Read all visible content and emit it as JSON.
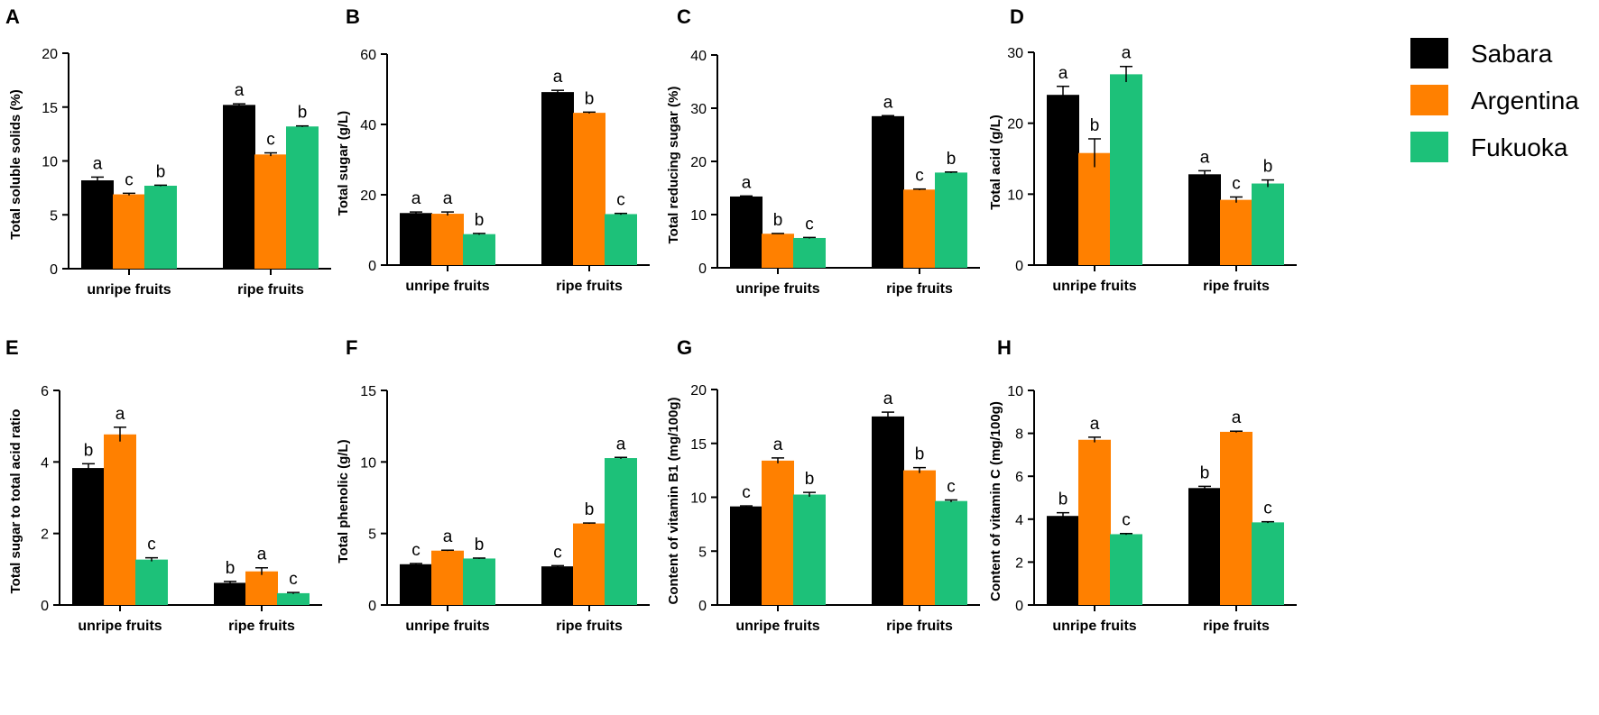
{
  "colors": {
    "Sabara": "#000000",
    "Argentina": "#ff8000",
    "Fukuoka": "#1dc179"
  },
  "legend": [
    "Sabara",
    "Argentina",
    "Fukuoka"
  ],
  "chart_data": [
    {
      "panel": "A",
      "type": "bar",
      "ylabel": "Total soluble solids (%)",
      "ylim": [
        0,
        20
      ],
      "yticks": [
        0,
        5,
        10,
        15,
        20
      ],
      "categories": [
        "unripe fruits",
        "ripe fruits"
      ],
      "series": [
        {
          "name": "Sabara",
          "values": [
            8.2,
            15.2
          ],
          "errors": [
            0.3,
            0.1
          ],
          "letters": [
            "a",
            "a"
          ]
        },
        {
          "name": "Argentina",
          "values": [
            6.9,
            10.6
          ],
          "errors": [
            0.1,
            0.15
          ],
          "letters": [
            "c",
            "c"
          ]
        },
        {
          "name": "Fukuoka",
          "values": [
            7.7,
            13.2
          ],
          "errors": [
            0.05,
            0.05
          ],
          "letters": [
            "b",
            "b"
          ]
        }
      ]
    },
    {
      "panel": "B",
      "type": "bar",
      "ylabel": "Total sugar (g/L)",
      "ylim": [
        0,
        60
      ],
      "yticks": [
        0,
        20,
        40,
        60
      ],
      "categories": [
        "unripe fruits",
        "ripe fruits"
      ],
      "series": [
        {
          "name": "Sabara",
          "values": [
            14.8,
            49.2
          ],
          "errors": [
            0.3,
            0.5
          ],
          "letters": [
            "a",
            "a"
          ]
        },
        {
          "name": "Argentina",
          "values": [
            14.6,
            43.3
          ],
          "errors": [
            0.5,
            0.2
          ],
          "letters": [
            "a",
            "b"
          ]
        },
        {
          "name": "Fukuoka",
          "values": [
            8.8,
            14.5
          ],
          "errors": [
            0.2,
            0.2
          ],
          "letters": [
            "b",
            "c"
          ]
        }
      ]
    },
    {
      "panel": "C",
      "type": "bar",
      "ylabel": "Total  reducing sugar (%)",
      "ylim": [
        0,
        40
      ],
      "yticks": [
        0,
        10,
        20,
        30,
        40
      ],
      "categories": [
        "unripe fruits",
        "ripe fruits"
      ],
      "series": [
        {
          "name": "Sabara",
          "values": [
            13.4,
            28.5
          ],
          "errors": [
            0.1,
            0.1
          ],
          "letters": [
            "a",
            "a"
          ]
        },
        {
          "name": "Argentina",
          "values": [
            6.4,
            14.7
          ],
          "errors": [
            0.05,
            0.1
          ],
          "letters": [
            "b",
            "c"
          ]
        },
        {
          "name": "Fukuoka",
          "values": [
            5.6,
            17.9
          ],
          "errors": [
            0.1,
            0.1
          ],
          "letters": [
            "c",
            "b"
          ]
        }
      ]
    },
    {
      "panel": "D",
      "type": "bar",
      "ylabel": "Total acid (g/L)",
      "ylim": [
        0,
        30
      ],
      "yticks": [
        0,
        10,
        20,
        30
      ],
      "categories": [
        "unripe fruits",
        "ripe fruits"
      ],
      "series": [
        {
          "name": "Sabara",
          "values": [
            24.0,
            12.8
          ],
          "errors": [
            1.2,
            0.5
          ],
          "letters": [
            "a",
            "a"
          ]
        },
        {
          "name": "Argentina",
          "values": [
            15.8,
            9.2
          ],
          "errors": [
            2.0,
            0.4
          ],
          "letters": [
            "b",
            "c"
          ]
        },
        {
          "name": "Fukuoka",
          "values": [
            26.9,
            11.5
          ],
          "errors": [
            1.1,
            0.5
          ],
          "letters": [
            "a",
            "b"
          ]
        }
      ]
    },
    {
      "panel": "E",
      "type": "bar",
      "ylabel": "Total sugar to total acid ratio",
      "ylim": [
        0,
        6
      ],
      "yticks": [
        0,
        2,
        4,
        6
      ],
      "categories": [
        "unripe fruits",
        "ripe fruits"
      ],
      "series": [
        {
          "name": "Sabara",
          "values": [
            3.83,
            0.62
          ],
          "errors": [
            0.12,
            0.04
          ],
          "letters": [
            "b",
            "b"
          ]
        },
        {
          "name": "Argentina",
          "values": [
            4.77,
            0.94
          ],
          "errors": [
            0.2,
            0.1
          ],
          "letters": [
            "a",
            "a"
          ]
        },
        {
          "name": "Fukuoka",
          "values": [
            1.27,
            0.33
          ],
          "errors": [
            0.05,
            0.02
          ],
          "letters": [
            "c",
            "c"
          ]
        }
      ]
    },
    {
      "panel": "F",
      "type": "bar",
      "ylabel": "Total phenolic (g/L)",
      "ylim": [
        0,
        15
      ],
      "yticks": [
        0,
        5,
        10,
        15
      ],
      "categories": [
        "unripe fruits",
        "ripe fruits"
      ],
      "series": [
        {
          "name": "Sabara",
          "values": [
            2.85,
            2.7
          ],
          "errors": [
            0.05,
            0.05
          ],
          "letters": [
            "c",
            "c"
          ]
        },
        {
          "name": "Argentina",
          "values": [
            3.8,
            5.7
          ],
          "errors": [
            0.03,
            0.03
          ],
          "letters": [
            "a",
            "b"
          ]
        },
        {
          "name": "Fukuoka",
          "values": [
            3.25,
            10.27
          ],
          "errors": [
            0.03,
            0.05
          ],
          "letters": [
            "b",
            "a"
          ]
        }
      ]
    },
    {
      "panel": "G",
      "type": "bar",
      "ylabel": "Content of vitamin B1 (mg/100g)",
      "ylim": [
        0,
        20
      ],
      "yticks": [
        0,
        5,
        10,
        15,
        20
      ],
      "categories": [
        "unripe fruits",
        "ripe fruits"
      ],
      "series": [
        {
          "name": "Sabara",
          "values": [
            9.15,
            17.5
          ],
          "errors": [
            0.05,
            0.4
          ],
          "letters": [
            "c",
            "a"
          ]
        },
        {
          "name": "Argentina",
          "values": [
            13.4,
            12.5
          ],
          "errors": [
            0.25,
            0.25
          ],
          "letters": [
            "a",
            "b"
          ]
        },
        {
          "name": "Fukuoka",
          "values": [
            10.25,
            9.65
          ],
          "errors": [
            0.2,
            0.1
          ],
          "letters": [
            "b",
            "c"
          ]
        }
      ]
    },
    {
      "panel": "H",
      "type": "bar",
      "ylabel": "Content of vitamin C (mg/100g)",
      "ylim": [
        0,
        10
      ],
      "yticks": [
        0,
        2,
        4,
        6,
        8,
        10
      ],
      "categories": [
        "unripe fruits",
        "ripe fruits"
      ],
      "series": [
        {
          "name": "Sabara",
          "values": [
            4.15,
            5.45
          ],
          "errors": [
            0.15,
            0.08
          ],
          "letters": [
            "b",
            "b"
          ]
        },
        {
          "name": "Argentina",
          "values": [
            7.7,
            8.07
          ],
          "errors": [
            0.12,
            0.03
          ],
          "letters": [
            "a",
            "a"
          ]
        },
        {
          "name": "Fukuoka",
          "values": [
            3.3,
            3.85
          ],
          "errors": [
            0.03,
            0.03
          ],
          "letters": [
            "c",
            "c"
          ]
        }
      ]
    }
  ]
}
